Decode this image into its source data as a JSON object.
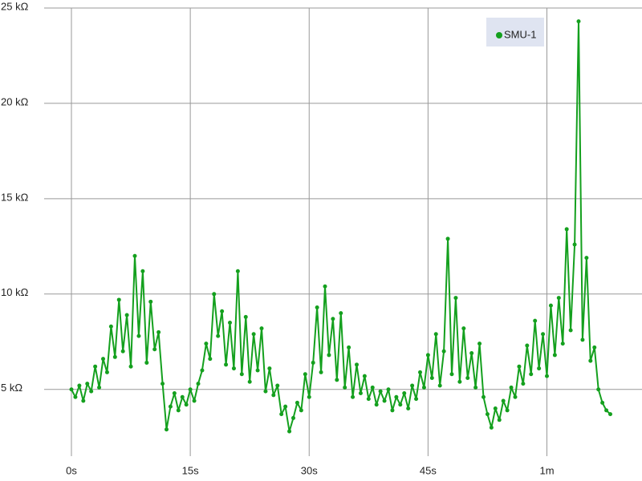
{
  "chart_data": {
    "type": "line",
    "x": [
      0,
      0.5,
      1,
      1.5,
      2,
      2.5,
      3,
      3.5,
      4,
      4.5,
      5,
      5.5,
      6,
      6.5,
      7,
      7.5,
      8,
      8.5,
      9,
      9.5,
      10,
      10.5,
      11,
      11.5,
      12,
      12.5,
      13,
      13.5,
      14,
      14.5,
      15,
      15.5,
      16,
      16.5,
      17,
      17.5,
      18,
      18.5,
      19,
      19.5,
      20,
      20.5,
      21,
      21.5,
      22,
      22.5,
      23,
      23.5,
      24,
      24.5,
      25,
      25.5,
      26,
      26.5,
      27,
      27.5,
      28,
      28.5,
      29,
      29.5,
      30,
      30.5,
      31,
      31.5,
      32,
      32.5,
      33,
      33.5,
      34,
      34.5,
      35,
      35.5,
      36,
      36.5,
      37,
      37.5,
      38,
      38.5,
      39,
      39.5,
      40,
      40.5,
      41,
      41.5,
      42,
      42.5,
      43,
      43.5,
      44,
      44.5,
      45,
      45.5,
      46,
      46.5,
      47,
      47.5,
      48,
      48.5,
      49,
      49.5,
      50,
      50.5,
      51,
      51.5,
      52,
      52.5,
      53,
      53.5,
      54,
      54.5,
      55,
      55.5,
      56,
      56.5,
      57,
      57.5,
      58,
      58.5,
      59,
      59.5,
      60,
      60.5,
      61,
      61.5,
      62,
      62.5,
      63,
      63.5,
      64,
      64.5,
      65,
      65.5,
      66,
      66.5,
      67,
      67.5,
      68
    ],
    "series": [
      {
        "name": "SMU-1",
        "color": "#14a01e",
        "values": [
          5.0,
          4.6,
          5.2,
          4.4,
          5.3,
          4.9,
          6.2,
          5.1,
          6.6,
          5.9,
          8.3,
          6.7,
          9.7,
          7.0,
          8.9,
          6.2,
          12.0,
          7.8,
          11.2,
          6.4,
          9.6,
          7.1,
          8.0,
          5.3,
          2.9,
          4.1,
          4.8,
          3.9,
          4.6,
          4.2,
          5.0,
          4.4,
          5.3,
          6.0,
          7.4,
          6.6,
          10.0,
          7.8,
          9.1,
          6.3,
          8.5,
          6.1,
          11.2,
          5.8,
          8.8,
          5.4,
          7.9,
          6.0,
          8.2,
          4.9,
          6.1,
          4.7,
          5.2,
          3.7,
          4.1,
          2.8,
          3.5,
          4.3,
          3.9,
          5.8,
          4.6,
          6.4,
          9.3,
          5.9,
          10.4,
          6.8,
          8.7,
          5.5,
          9.0,
          5.1,
          7.2,
          4.6,
          6.3,
          4.8,
          5.7,
          4.5,
          5.1,
          4.2,
          4.9,
          4.4,
          5.0,
          3.9,
          4.6,
          4.2,
          4.8,
          4.0,
          5.2,
          4.5,
          5.9,
          5.1,
          6.8,
          5.6,
          7.9,
          5.2,
          7.0,
          12.9,
          5.8,
          9.8,
          5.4,
          8.2,
          5.6,
          6.9,
          5.1,
          7.4,
          4.6,
          3.7,
          3.0,
          4.0,
          3.4,
          4.4,
          3.9,
          5.1,
          4.6,
          6.2,
          5.3,
          7.3,
          5.8,
          8.6,
          6.1,
          7.9,
          5.7,
          9.4,
          6.8,
          9.8,
          7.4,
          13.4,
          8.1,
          12.6,
          24.3,
          7.6,
          11.9,
          6.5,
          7.2,
          5.0,
          4.3,
          3.9,
          3.7
        ]
      }
    ],
    "xlim": [
      0,
      72
    ],
    "ylim": [
      1.5,
      25
    ],
    "xticks": [
      {
        "value": 0,
        "label": "0s"
      },
      {
        "value": 15,
        "label": "15s"
      },
      {
        "value": 30,
        "label": "30s"
      },
      {
        "value": 45,
        "label": "45s"
      },
      {
        "value": 60,
        "label": "1m"
      }
    ],
    "yticks": [
      {
        "value": 5,
        "label": "5 kΩ"
      },
      {
        "value": 10,
        "label": "10 kΩ"
      },
      {
        "value": 15,
        "label": "15 kΩ"
      },
      {
        "value": 20,
        "label": "20 kΩ"
      },
      {
        "value": 25,
        "label": "25 kΩ"
      }
    ],
    "grid": true,
    "legend": "top-right"
  }
}
